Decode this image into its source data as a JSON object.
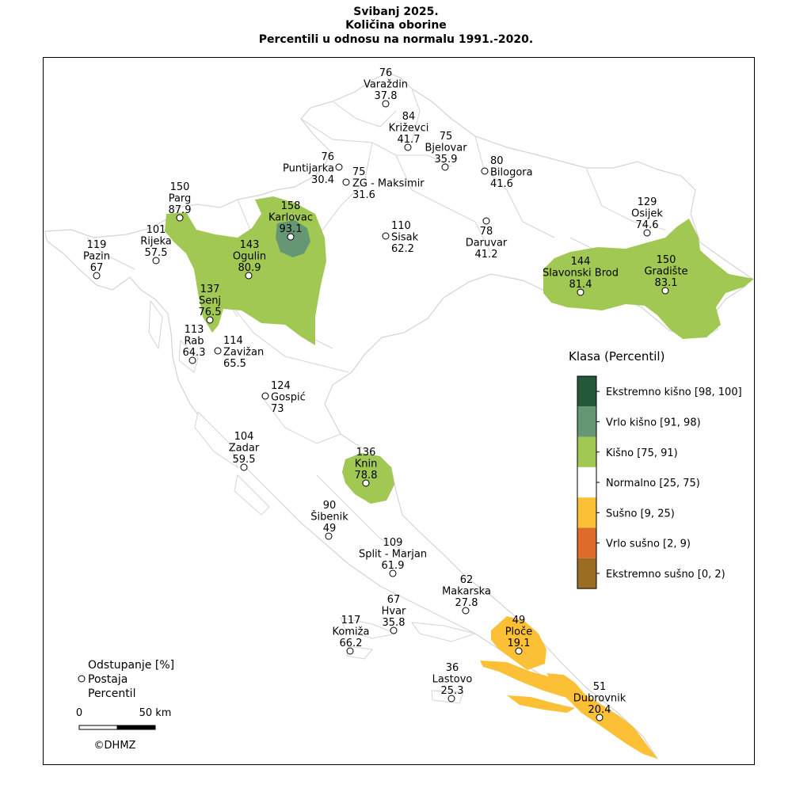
{
  "title": {
    "line1": "Svibanj 2025.",
    "line2": "Količina oborine",
    "line3": "Percentili u odnosu na normalu 1991.-2020."
  },
  "legend": {
    "title": "Klasa (Percentil)",
    "classes": [
      {
        "label": "Ekstremno kišno [98, 100]",
        "color": "#23583a"
      },
      {
        "label": "Vrlo kišno [91, 98)",
        "color": "#659774"
      },
      {
        "label": "Kišno [75, 91)",
        "color": "#a1c853"
      },
      {
        "label": "Normalno [25, 75)",
        "color": "#ffffff"
      },
      {
        "label": "Sušno [9, 25)",
        "color": "#fbc035"
      },
      {
        "label": "Vrlo sušno [2, 9)",
        "color": "#de6b29"
      },
      {
        "label": "Ekstremno sušno [0, 2)",
        "color": "#9a6e22"
      }
    ]
  },
  "key": {
    "deviation": "Odstupanje [%]",
    "station": "Postaja",
    "percentile": "Percentil"
  },
  "scalebar": {
    "start": "0",
    "end": "50 km"
  },
  "copyright": "©DHMZ",
  "stations": [
    {
      "name": "Varaždin",
      "deviation": "76",
      "percentile": "37.8"
    },
    {
      "name": "Križevci",
      "deviation": "84",
      "percentile": "41.7"
    },
    {
      "name": "Bjelovar",
      "deviation": "75",
      "percentile": "35.9"
    },
    {
      "name": "Puntijarka",
      "deviation": "76",
      "percentile": "30.4"
    },
    {
      "name": "ZG - Maksimir",
      "deviation": "75",
      "percentile": "31.6"
    },
    {
      "name": "Bilogora",
      "deviation": "80",
      "percentile": "41.6"
    },
    {
      "name": "Parg",
      "deviation": "150",
      "percentile": "87.9"
    },
    {
      "name": "Karlovac",
      "deviation": "158",
      "percentile": "93.1"
    },
    {
      "name": "Osijek",
      "deviation": "129",
      "percentile": "74.6"
    },
    {
      "name": "Rijeka",
      "deviation": "101",
      "percentile": "57.5"
    },
    {
      "name": "Pazin",
      "deviation": "119",
      "percentile": "67"
    },
    {
      "name": "Ogulin",
      "deviation": "143",
      "percentile": "80.9"
    },
    {
      "name": "Sisak",
      "deviation": "110",
      "percentile": "62.2"
    },
    {
      "name": "Daruvar",
      "deviation": "78",
      "percentile": "41.2"
    },
    {
      "name": "Slavonski Brod",
      "deviation": "144",
      "percentile": "81.4"
    },
    {
      "name": "Gradište",
      "deviation": "150",
      "percentile": "83.1"
    },
    {
      "name": "Senj",
      "deviation": "137",
      "percentile": "76.5"
    },
    {
      "name": "Rab",
      "deviation": "113",
      "percentile": "64.3"
    },
    {
      "name": "Zavižan",
      "deviation": "114",
      "percentile": "65.5"
    },
    {
      "name": "Gospić",
      "deviation": "124",
      "percentile": "73"
    },
    {
      "name": "Zadar",
      "deviation": "104",
      "percentile": "59.5"
    },
    {
      "name": "Knin",
      "deviation": "136",
      "percentile": "78.8"
    },
    {
      "name": "Šibenik",
      "deviation": "90",
      "percentile": "49"
    },
    {
      "name": "Split - Marjan",
      "deviation": "109",
      "percentile": "61.9"
    },
    {
      "name": "Makarska",
      "deviation": "62",
      "percentile": "27.8"
    },
    {
      "name": "Hvar",
      "deviation": "67",
      "percentile": "35.8"
    },
    {
      "name": "Ploče",
      "deviation": "49",
      "percentile": "19.1"
    },
    {
      "name": "Komiža",
      "deviation": "117",
      "percentile": "66.2"
    },
    {
      "name": "Lastovo",
      "deviation": "36",
      "percentile": "25.3"
    },
    {
      "name": "Dubrovnik",
      "deviation": "51",
      "percentile": "20.4"
    }
  ]
}
